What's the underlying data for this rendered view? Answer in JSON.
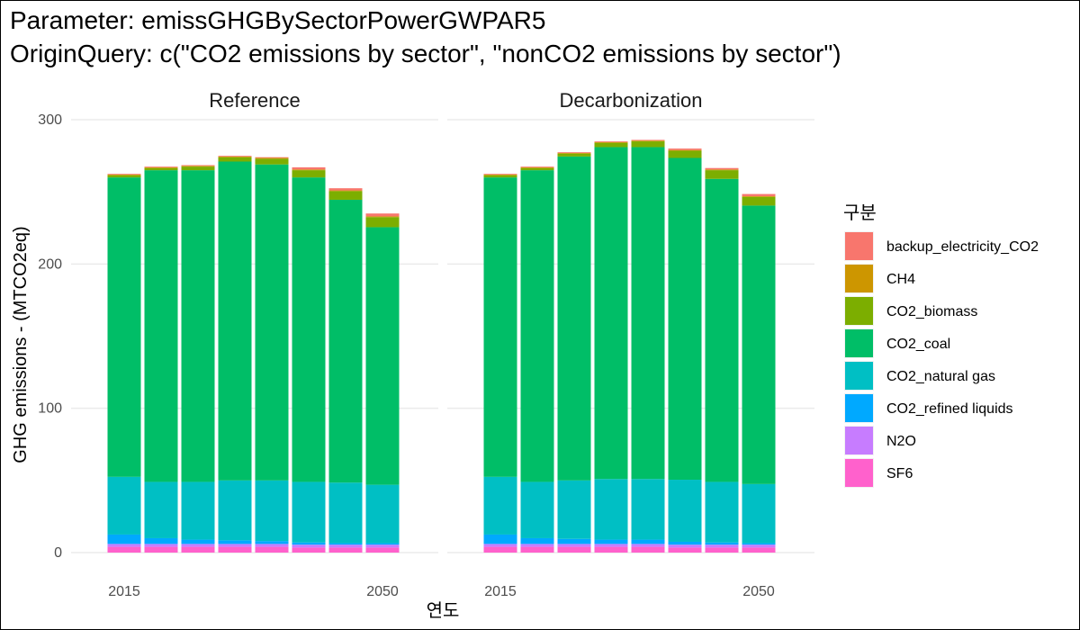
{
  "header": {
    "title_line1": "Parameter: emissGHGBySectorPowerGWPAR5",
    "title_line2": "OriginQuery: c(\"CO2 emissions by sector\", \"nonCO2 emissions by sector\")"
  },
  "chart_data": {
    "type": "bar",
    "stacked": true,
    "xlabel": "연도",
    "ylabel": "GHG emissions - (MTCO2eq)",
    "ylim": [
      0,
      300
    ],
    "y_ticks": [
      0,
      100,
      200,
      300
    ],
    "x": [
      2015,
      2020,
      2025,
      2030,
      2035,
      2040,
      2045,
      2050
    ],
    "x_tick_labels": [
      "2015",
      "2050"
    ],
    "grid": true,
    "legend": {
      "title": "구분",
      "position": "right",
      "entries": [
        {
          "name": "backup_electricity_CO2",
          "color": "#F8766D"
        },
        {
          "name": "CH4",
          "color": "#CD9600"
        },
        {
          "name": "CO2_biomass",
          "color": "#7CAE00"
        },
        {
          "name": "CO2_coal",
          "color": "#00BE67"
        },
        {
          "name": "CO2_natural gas",
          "color": "#00BFC4"
        },
        {
          "name": "CO2_refined liquids",
          "color": "#00A9FF"
        },
        {
          "name": "N2O",
          "color": "#C77CFF"
        },
        {
          "name": "SF6",
          "color": "#FF61CC"
        }
      ]
    },
    "facets": [
      {
        "name": "Reference",
        "series": [
          {
            "name": "SF6",
            "values": [
              4,
              4,
              4,
              4,
              4,
              3.5,
              3.5,
              3.5
            ]
          },
          {
            "name": "N2O",
            "values": [
              2,
              2,
              2,
              2,
              2,
              2,
              2,
              2
            ]
          },
          {
            "name": "CO2_refined liquids",
            "values": [
              6.5,
              4,
              3,
              2.5,
              2,
              1.5,
              1,
              1
            ]
          },
          {
            "name": "CO2_natural gas",
            "values": [
              40,
              39,
              40,
              41.5,
              42,
              42,
              42,
              40.5
            ]
          },
          {
            "name": "CO2_coal",
            "values": [
              207.5,
              216,
              216,
              221,
              219,
              211,
              196,
              178.5
            ]
          },
          {
            "name": "CO2_biomass",
            "values": [
              1.5,
              1.5,
              2.5,
              3,
              4,
              5,
              6,
              7
            ]
          },
          {
            "name": "CH4",
            "values": [
              0.5,
              0.5,
              0.5,
              0.5,
              0.5,
              0.5,
              0.5,
              0.5
            ]
          },
          {
            "name": "backup_electricity_CO2",
            "values": [
              0.5,
              0.5,
              0.5,
              0.5,
              0.5,
              1.5,
              1.5,
              2
            ]
          }
        ]
      },
      {
        "name": "Decarbonization",
        "series": [
          {
            "name": "SF6",
            "values": [
              4,
              4,
              4,
              4,
              4,
              3.5,
              3.5,
              3.5
            ]
          },
          {
            "name": "N2O",
            "values": [
              2,
              2,
              2,
              2,
              2,
              2,
              2,
              2
            ]
          },
          {
            "name": "CO2_refined liquids",
            "values": [
              6.5,
              4,
              3.5,
              3,
              3,
              2,
              1.5,
              1
            ]
          },
          {
            "name": "CO2_natural gas",
            "values": [
              40,
              39,
              40.5,
              42,
              42,
              43,
              42,
              41
            ]
          },
          {
            "name": "CO2_coal",
            "values": [
              207.5,
              216,
              224.5,
              230,
              230,
              223,
              210,
              193
            ]
          },
          {
            "name": "CO2_biomass",
            "values": [
              1.5,
              1.5,
              2,
              3,
              4,
              5,
              6,
              6
            ]
          },
          {
            "name": "CH4",
            "values": [
              0.5,
              0.5,
              0.5,
              0.5,
              0.5,
              0.5,
              0.5,
              0.5
            ]
          },
          {
            "name": "backup_electricity_CO2",
            "values": [
              0.5,
              0.5,
              0.5,
              0.5,
              0.5,
              1,
              1,
              1.5
            ]
          }
        ]
      }
    ]
  }
}
